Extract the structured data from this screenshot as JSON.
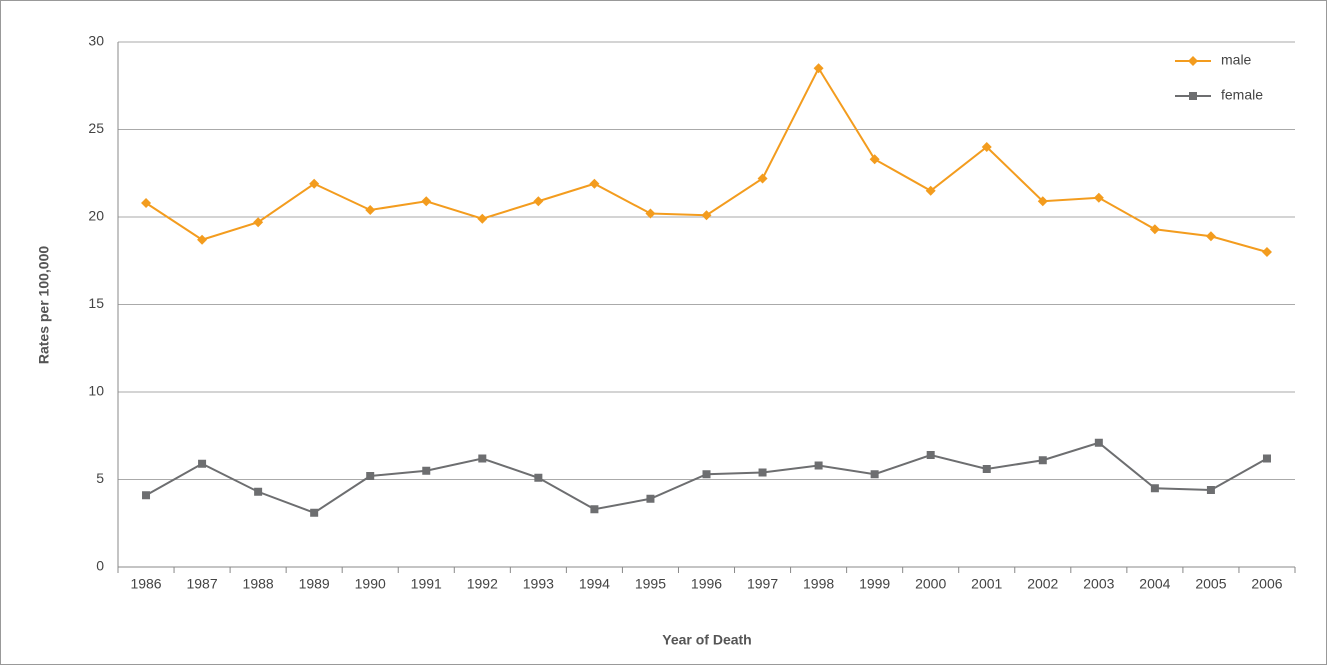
{
  "chart_data": {
    "type": "line",
    "x_label": "Year of Death",
    "y_label": "Rates per 100,000",
    "categories": [
      "1986",
      "1987",
      "1988",
      "1989",
      "1990",
      "1991",
      "1992",
      "1993",
      "1994",
      "1995",
      "1996",
      "1997",
      "1998",
      "1999",
      "2000",
      "2001",
      "2002",
      "2003",
      "2004",
      "2005",
      "2006"
    ],
    "series": [
      {
        "name": "male",
        "color": "#f39c1e",
        "marker": "diamond",
        "values": [
          20.8,
          18.7,
          19.7,
          21.9,
          20.4,
          20.9,
          19.9,
          20.9,
          21.9,
          20.2,
          20.1,
          22.2,
          28.5,
          23.3,
          21.5,
          24.0,
          20.9,
          21.1,
          19.3,
          18.9,
          18.0
        ]
      },
      {
        "name": "female",
        "color": "#6d6e70",
        "marker": "square",
        "values": [
          4.1,
          5.9,
          4.3,
          3.1,
          5.2,
          5.5,
          6.2,
          5.1,
          3.3,
          3.9,
          5.3,
          5.4,
          5.8,
          5.3,
          6.4,
          5.6,
          6.1,
          7.1,
          4.5,
          4.4,
          6.2
        ]
      }
    ],
    "ylim": [
      0,
      30
    ],
    "yticks": [
      0,
      5,
      10,
      15,
      20,
      25,
      30
    ],
    "grid": true,
    "legend": "top-right"
  }
}
